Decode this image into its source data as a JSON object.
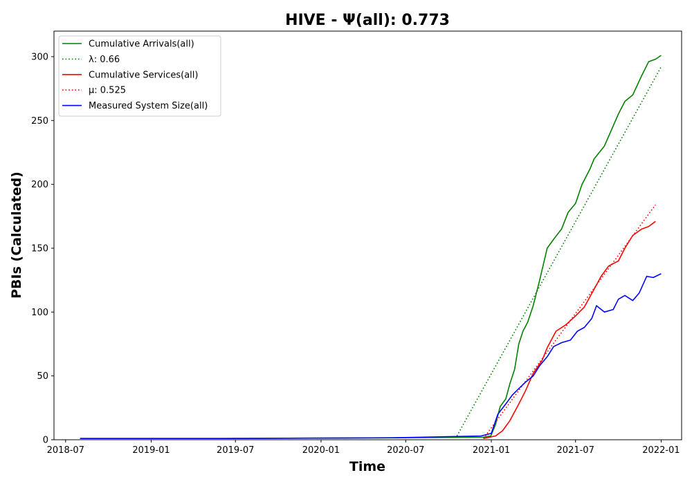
{
  "chart_data": {
    "type": "line",
    "title": "HIVE -  Ψ(all): 0.773",
    "xlabel": "Time",
    "ylabel": "PBIs (Calculated)",
    "x_ticks": [
      "2018-07",
      "2019-01",
      "2019-07",
      "2020-01",
      "2020-07",
      "2021-01",
      "2021-07",
      "2022-01"
    ],
    "y_ticks": [
      "0",
      "50",
      "100",
      "150",
      "200",
      "250",
      "300"
    ],
    "xlim": [
      "2018-06-06",
      "2022-02-14"
    ],
    "ylim": [
      0,
      320
    ],
    "grid": false,
    "legend_position": "top-left",
    "series": [
      {
        "name": "Cumulative Arrivals(all)",
        "color": "#008000",
        "style": "solid",
        "points": [
          [
            "2018-08-01",
            1
          ],
          [
            "2019-06-01",
            1
          ],
          [
            "2020-06-01",
            1.5
          ],
          [
            "2020-12-15",
            2
          ],
          [
            "2020-12-31",
            3
          ],
          [
            "2021-01-10",
            12
          ],
          [
            "2021-01-20",
            26
          ],
          [
            "2021-02-01",
            32
          ],
          [
            "2021-02-10",
            44
          ],
          [
            "2021-02-20",
            55
          ],
          [
            "2021-03-01",
            75
          ],
          [
            "2021-03-10",
            85
          ],
          [
            "2021-03-20",
            92
          ],
          [
            "2021-04-01",
            105
          ],
          [
            "2021-04-15",
            125
          ],
          [
            "2021-05-01",
            150
          ],
          [
            "2021-05-15",
            157
          ],
          [
            "2021-06-01",
            165
          ],
          [
            "2021-06-15",
            178
          ],
          [
            "2021-07-01",
            185
          ],
          [
            "2021-07-15",
            200
          ],
          [
            "2021-08-01",
            212
          ],
          [
            "2021-08-10",
            220
          ],
          [
            "2021-09-01",
            230
          ],
          [
            "2021-10-01",
            255
          ],
          [
            "2021-10-15",
            265
          ],
          [
            "2021-11-01",
            270
          ],
          [
            "2021-11-20",
            285
          ],
          [
            "2021-12-05",
            296
          ],
          [
            "2021-12-20",
            298
          ],
          [
            "2022-01-01",
            301
          ]
        ]
      },
      {
        "name": "λ: 0.66",
        "color": "#008000",
        "style": "dotted",
        "points": [
          [
            "2020-10-19",
            3
          ],
          [
            "2022-01-01",
            292
          ]
        ]
      },
      {
        "name": "Cumulative Services(all)",
        "color": "#ff0000",
        "style": "solid",
        "points": [
          [
            "2020-12-15",
            1
          ],
          [
            "2021-01-10",
            3
          ],
          [
            "2021-01-25",
            7
          ],
          [
            "2021-02-10",
            15
          ],
          [
            "2021-03-01",
            28
          ],
          [
            "2021-03-15",
            38
          ],
          [
            "2021-04-01",
            52
          ],
          [
            "2021-04-20",
            62
          ],
          [
            "2021-05-01",
            72
          ],
          [
            "2021-05-20",
            85
          ],
          [
            "2021-06-10",
            90
          ],
          [
            "2021-07-01",
            97
          ],
          [
            "2021-07-20",
            104
          ],
          [
            "2021-08-10",
            118
          ],
          [
            "2021-08-25",
            128
          ],
          [
            "2021-09-10",
            136
          ],
          [
            "2021-10-01",
            140
          ],
          [
            "2021-10-15",
            150
          ],
          [
            "2021-11-01",
            160
          ],
          [
            "2021-11-20",
            165
          ],
          [
            "2021-12-05",
            167
          ],
          [
            "2021-12-20",
            171
          ]
        ]
      },
      {
        "name": "μ: 0.525",
        "color": "#ff0000",
        "style": "dotted",
        "points": [
          [
            "2020-12-15",
            1
          ],
          [
            "2021-12-20",
            184
          ]
        ]
      },
      {
        "name": "Measured System Size(all)",
        "color": "#0000ff",
        "style": "solid",
        "points": [
          [
            "2018-08-01",
            1
          ],
          [
            "2019-06-01",
            1
          ],
          [
            "2020-06-01",
            1.5
          ],
          [
            "2020-12-10",
            3
          ],
          [
            "2021-01-01",
            5
          ],
          [
            "2021-01-15",
            20
          ],
          [
            "2021-02-01",
            28
          ],
          [
            "2021-02-15",
            35
          ],
          [
            "2021-03-01",
            40
          ],
          [
            "2021-03-15",
            45
          ],
          [
            "2021-04-01",
            50
          ],
          [
            "2021-04-15",
            58
          ],
          [
            "2021-05-01",
            65
          ],
          [
            "2021-05-15",
            73
          ],
          [
            "2021-06-01",
            76
          ],
          [
            "2021-06-20",
            78
          ],
          [
            "2021-07-05",
            85
          ],
          [
            "2021-07-20",
            88
          ],
          [
            "2021-08-05",
            95
          ],
          [
            "2021-08-15",
            105
          ],
          [
            "2021-09-01",
            100
          ],
          [
            "2021-09-20",
            102
          ],
          [
            "2021-10-01",
            110
          ],
          [
            "2021-10-15",
            113
          ],
          [
            "2021-11-01",
            109
          ],
          [
            "2021-11-15",
            115
          ],
          [
            "2021-12-01",
            128
          ],
          [
            "2021-12-15",
            127
          ],
          [
            "2022-01-01",
            130
          ]
        ]
      }
    ]
  }
}
